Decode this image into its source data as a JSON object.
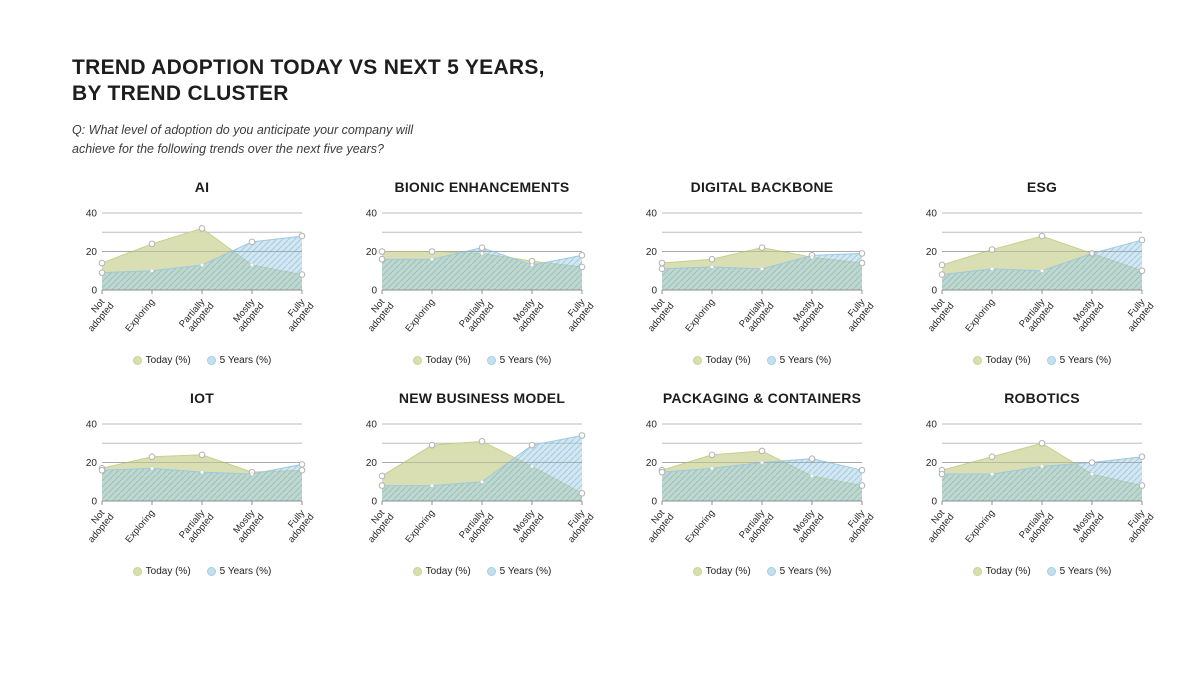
{
  "header": {
    "title": "TREND ADOPTION TODAY VS NEXT 5 YEARS,\nBY TREND CLUSTER",
    "subtitle": "Q: What level of adoption do you anticipate your company will\nachieve for the following trends over the next five years?"
  },
  "legend": {
    "today_label": "Today (%)",
    "five_years_label": "5 Years (%)"
  },
  "colors": {
    "today_fill": "#d5dcaa",
    "today_line": "#c7d08d",
    "today_legend_dot": "#d9dfae",
    "today_legend_dot_border": "#c9d194",
    "five_years_fill": "#a7cfe6",
    "five_years_hatch": "#4f97c0",
    "five_years_line": "#9ec9e0",
    "five_years_legend_dot": "#c3e0f0",
    "five_years_legend_dot_border": "#a3cde4",
    "grid_line": "#bdbdbd",
    "axis_line": "#8f8f8f",
    "marker_stroke": "#b2b2b2",
    "label_text": "#2b2b2b"
  },
  "axis": {
    "y_ticks": [
      0,
      20,
      40
    ],
    "ylim": [
      0,
      40
    ],
    "categories": [
      "Not adopted",
      "Exploring",
      "Partially adopted",
      "Mostly adopted",
      "Fully adopted"
    ]
  },
  "chart_data": [
    {
      "title": "AI",
      "type": "area",
      "ylim": [
        0,
        40
      ],
      "categories": [
        "Not adopted",
        "Exploring",
        "Partially adopted",
        "Mostly adopted",
        "Fully adopted"
      ],
      "series": [
        {
          "name": "Today (%)",
          "values": [
            14,
            24,
            32,
            13,
            8
          ]
        },
        {
          "name": "5 Years (%)",
          "values": [
            9,
            10,
            13,
            25,
            28
          ]
        }
      ]
    },
    {
      "title": "BIONIC ENHANCEMENTS",
      "type": "area",
      "ylim": [
        0,
        40
      ],
      "categories": [
        "Not adopted",
        "Exploring",
        "Partially adopted",
        "Mostly adopted",
        "Fully adopted"
      ],
      "series": [
        {
          "name": "Today (%)",
          "values": [
            20,
            20,
            19,
            15,
            12
          ]
        },
        {
          "name": "5 Years (%)",
          "values": [
            16,
            16,
            22,
            13,
            18
          ]
        }
      ]
    },
    {
      "title": "DIGITAL BACKBONE",
      "type": "area",
      "ylim": [
        0,
        40
      ],
      "categories": [
        "Not adopted",
        "Exploring",
        "Partially adopted",
        "Mostly adopted",
        "Fully adopted"
      ],
      "series": [
        {
          "name": "Today (%)",
          "values": [
            14,
            16,
            22,
            17,
            14
          ]
        },
        {
          "name": "5 Years (%)",
          "values": [
            11,
            12,
            11,
            18,
            19
          ]
        }
      ]
    },
    {
      "title": "ESG",
      "type": "area",
      "ylim": [
        0,
        40
      ],
      "categories": [
        "Not adopted",
        "Exploring",
        "Partially adopted",
        "Mostly adopted",
        "Fully adopted"
      ],
      "series": [
        {
          "name": "Today (%)",
          "values": [
            13,
            21,
            28,
            19,
            10
          ]
        },
        {
          "name": "5 Years (%)",
          "values": [
            8,
            11,
            10,
            19,
            26
          ]
        }
      ]
    },
    {
      "title": "IOT",
      "type": "area",
      "ylim": [
        0,
        40
      ],
      "categories": [
        "Not adopted",
        "Exploring",
        "Partially adopted",
        "Mostly adopted",
        "Fully adopted"
      ],
      "series": [
        {
          "name": "Today (%)",
          "values": [
            17,
            23,
            24,
            15,
            16
          ]
        },
        {
          "name": "5 Years (%)",
          "values": [
            16,
            17,
            15,
            14,
            19
          ]
        }
      ]
    },
    {
      "title": "NEW BUSINESS MODEL",
      "type": "area",
      "ylim": [
        0,
        40
      ],
      "categories": [
        "Not adopted",
        "Exploring",
        "Partially adopted",
        "Mostly adopted",
        "Fully adopted"
      ],
      "series": [
        {
          "name": "Today (%)",
          "values": [
            13,
            29,
            31,
            18,
            4
          ]
        },
        {
          "name": "5 Years (%)",
          "values": [
            8,
            8,
            10,
            29,
            34
          ]
        }
      ]
    },
    {
      "title": "PACKAGING & CONTAINERS",
      "type": "area",
      "ylim": [
        0,
        40
      ],
      "categories": [
        "Not adopted",
        "Exploring",
        "Partially adopted",
        "Mostly adopted",
        "Fully adopted"
      ],
      "series": [
        {
          "name": "Today (%)",
          "values": [
            16,
            24,
            26,
            13,
            8
          ]
        },
        {
          "name": "5 Years (%)",
          "values": [
            15,
            17,
            20,
            22,
            16
          ]
        }
      ]
    },
    {
      "title": "ROBOTICS",
      "type": "area",
      "ylim": [
        0,
        40
      ],
      "categories": [
        "Not adopted",
        "Exploring",
        "Partially adopted",
        "Mostly adopted",
        "Fully adopted"
      ],
      "series": [
        {
          "name": "Today (%)",
          "values": [
            16,
            23,
            30,
            14,
            8
          ]
        },
        {
          "name": "5 Years (%)",
          "values": [
            14,
            14,
            18,
            20,
            23
          ]
        }
      ]
    }
  ]
}
